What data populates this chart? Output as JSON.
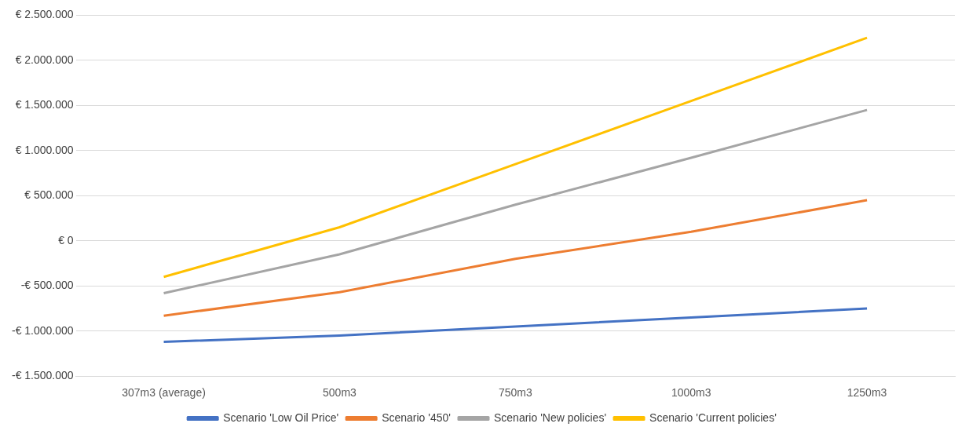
{
  "chart_data": {
    "type": "line",
    "categories": [
      "307m3 (average)",
      "500m3",
      "750m3",
      "1000m3",
      "1250m3"
    ],
    "series": [
      {
        "name": "Scenario 'Low Oil Price'",
        "color": "#4472c4",
        "values": [
          -1120000,
          -1050000,
          -950000,
          -850000,
          -750000
        ]
      },
      {
        "name": "Scenario '450'",
        "color": "#ed7d31",
        "values": [
          -830000,
          -570000,
          -200000,
          100000,
          450000
        ]
      },
      {
        "name": "Scenario 'New policies'",
        "color": "#a5a5a5",
        "values": [
          -580000,
          -150000,
          400000,
          920000,
          1450000
        ]
      },
      {
        "name": "Scenario 'Current policies'",
        "color": "#ffc000",
        "values": [
          -400000,
          150000,
          850000,
          1550000,
          2250000
        ]
      }
    ],
    "ylim": [
      -1500000,
      2500000
    ],
    "yticks": [
      {
        "value": -1500000,
        "label": "-€ 1.500.000"
      },
      {
        "value": -1000000,
        "label": "-€ 1.000.000"
      },
      {
        "value": -500000,
        "label": "-€ 500.000"
      },
      {
        "value": 0,
        "label": "€ 0"
      },
      {
        "value": 500000,
        "label": "€ 500.000"
      },
      {
        "value": 1000000,
        "label": "€ 1.000.000"
      },
      {
        "value": 1500000,
        "label": "€ 1.500.000"
      },
      {
        "value": 2000000,
        "label": "€ 2.000.000"
      },
      {
        "value": 2500000,
        "label": "€ 2.500.000"
      }
    ],
    "grid": "y",
    "legend": "bottom",
    "marker": "none",
    "line_style": "solid"
  }
}
